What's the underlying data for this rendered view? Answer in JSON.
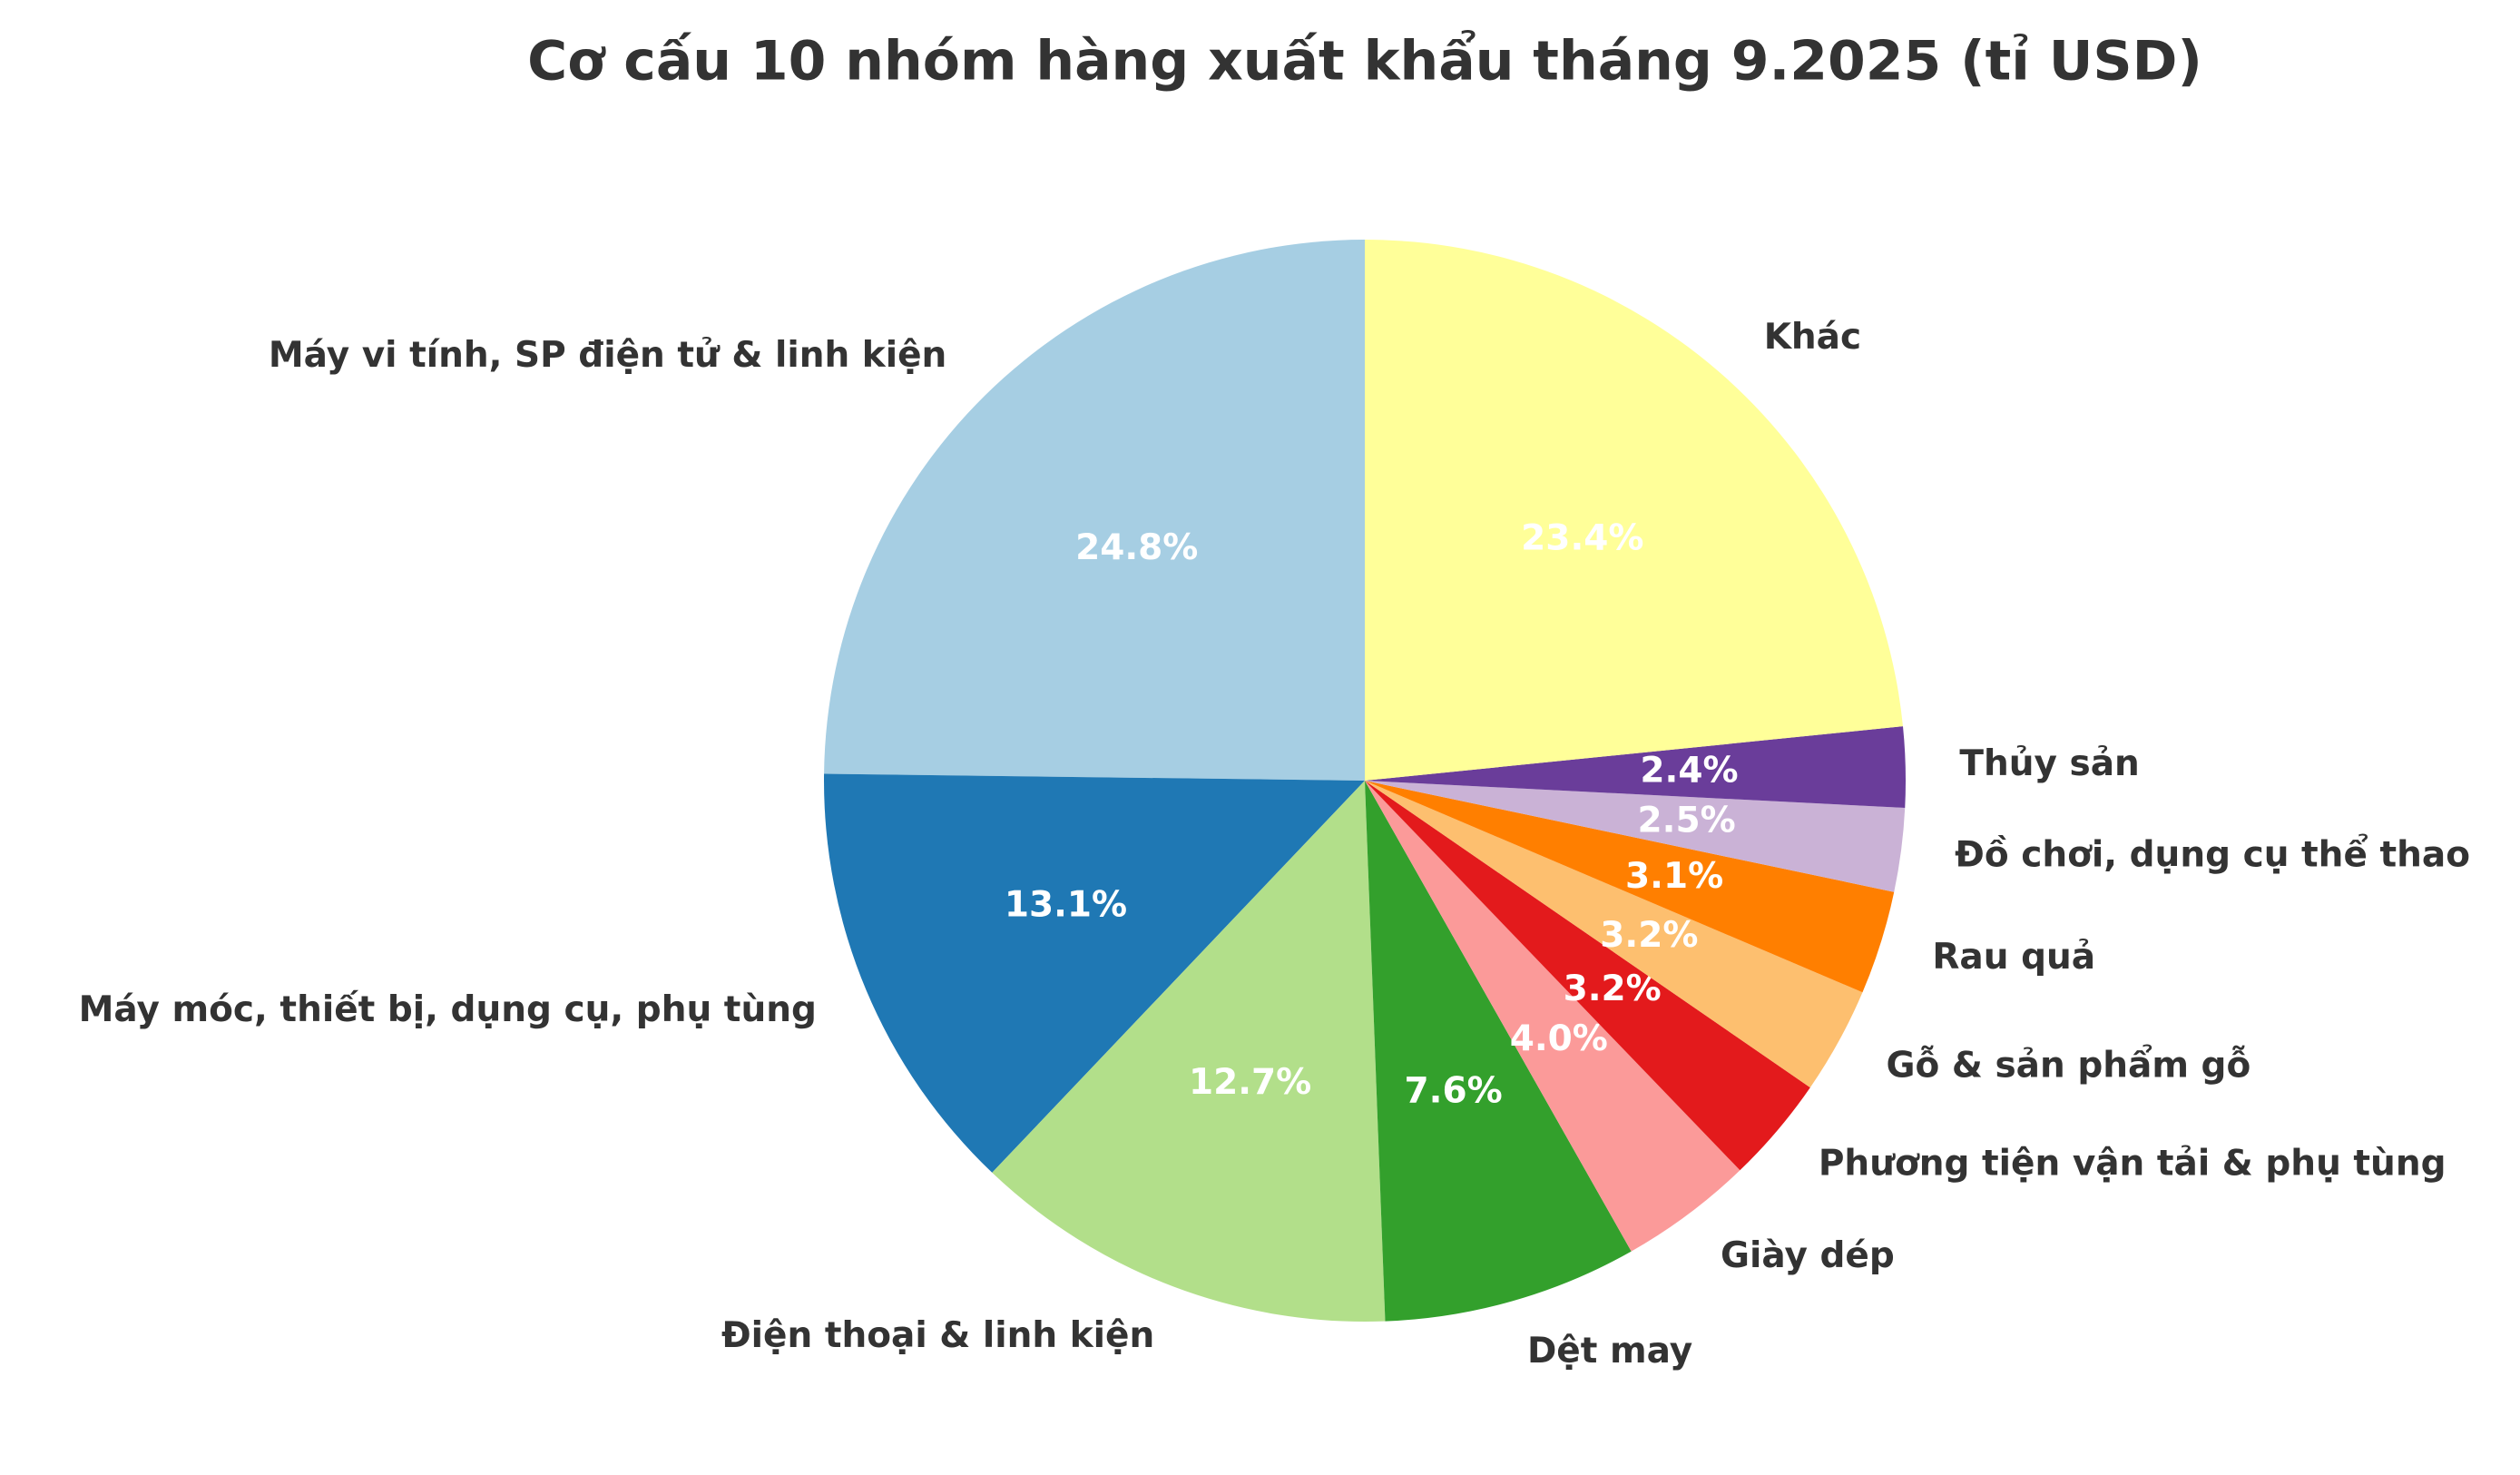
{
  "chart_data": {
    "type": "pie",
    "title": "Cơ cấu 10 nhóm hàng xuất khẩu tháng 9.2025 (tỉ USD)",
    "categories": [
      "Máy vi tính, SP điện tử & linh kiện",
      "Máy móc, thiết bị, dụng cụ, phụ tùng",
      "Điện thoại & linh kiện",
      "Dệt may",
      "Giày dép",
      "Phương tiện vận tải & phụ tùng",
      "Gỗ & sản phẩm gỗ",
      "Rau quả",
      "Đồ chơi, dụng cụ thể thao",
      "Thủy sản",
      "Khác"
    ],
    "values": [
      24.8,
      13.1,
      12.7,
      7.6,
      4.0,
      3.2,
      3.2,
      3.1,
      2.5,
      2.4,
      23.4
    ],
    "value_labels": [
      "24.8%",
      "13.1%",
      "12.7%",
      "7.6%",
      "4.0%",
      "3.2%",
      "3.2%",
      "3.1%",
      "2.5%",
      "2.4%",
      "23.4%"
    ],
    "colors": [
      "#a6cee3",
      "#1f78b4",
      "#b2df8a",
      "#33a02c",
      "#fb9a99",
      "#e31a1c",
      "#fdbf6f",
      "#ff7f00",
      "#cab2d6",
      "#6a3d9a",
      "#ffff99"
    ]
  }
}
